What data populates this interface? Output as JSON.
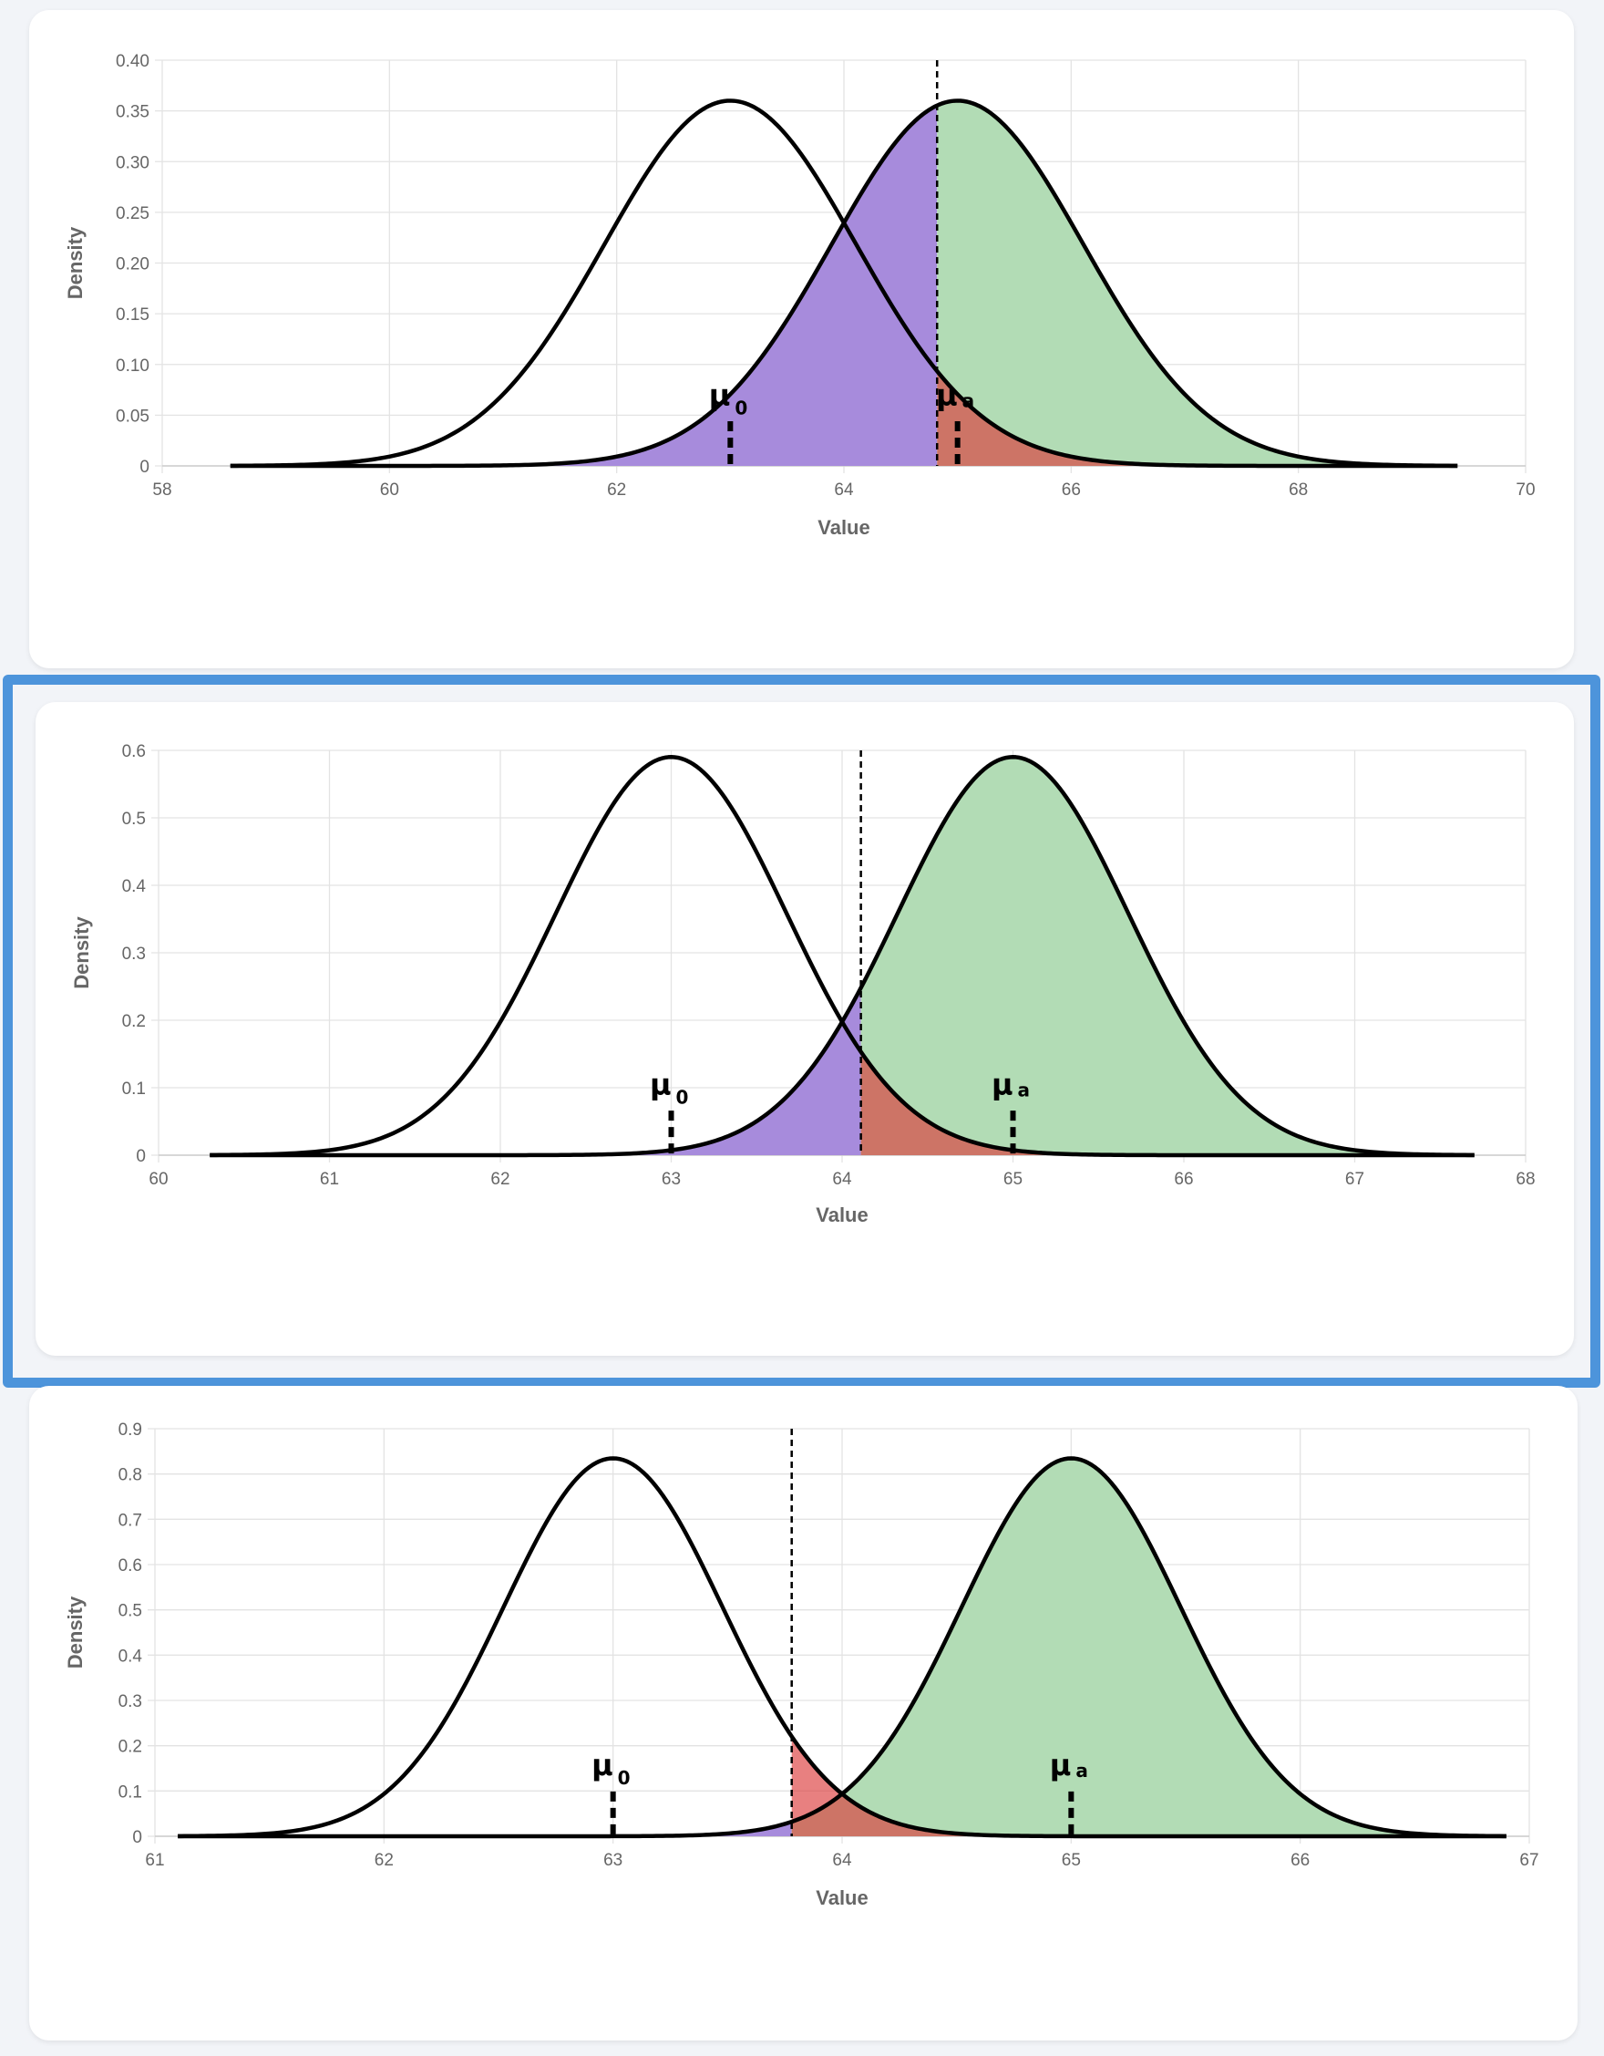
{
  "colors": {
    "beta": "#a78bdc",
    "power": "#b2dcb5",
    "alpha": "rgba(220,60,60,0.65)",
    "selection": "#4d94db",
    "curve": "#000000"
  },
  "chart_data": [
    {
      "type": "area",
      "xlabel": "Value",
      "ylabel": "Density",
      "xlim": [
        58,
        70
      ],
      "ylim": [
        0,
        0.4
      ],
      "x_ticks": [
        "58",
        "60",
        "62",
        "64",
        "66",
        "68",
        "70"
      ],
      "y_ticks": [
        "0",
        "0.05",
        "0.10",
        "0.15",
        "0.20",
        "0.25",
        "0.30",
        "0.35",
        "0.40"
      ],
      "grid": true,
      "null_mean": 63,
      "alt_mean": 65,
      "sd": 1.108,
      "critical_value": 64.82,
      "curve_range": [
        58.6,
        69.4
      ],
      "labels": {
        "mu0": "μ",
        "mu0_sub": "0",
        "mua": "μ",
        "mua_sub": "a"
      },
      "selected": false
    },
    {
      "type": "area",
      "xlabel": "Value",
      "ylabel": "Density",
      "xlim": [
        60,
        68
      ],
      "ylim": [
        0,
        0.6
      ],
      "x_ticks": [
        "60",
        "61",
        "62",
        "63",
        "64",
        "65",
        "66",
        "67",
        "68"
      ],
      "y_ticks": [
        "0",
        "0.1",
        "0.2",
        "0.3",
        "0.4",
        "0.5",
        "0.6"
      ],
      "grid": true,
      "null_mean": 63,
      "alt_mean": 65,
      "sd": 0.676,
      "critical_value": 64.11,
      "curve_range": [
        60.3,
        67.7
      ],
      "labels": {
        "mu0": "μ",
        "mu0_sub": "0",
        "mua": "μ",
        "mua_sub": "a"
      },
      "selected": true
    },
    {
      "type": "area",
      "xlabel": "Value",
      "ylabel": "Density",
      "xlim": [
        61,
        67
      ],
      "ylim": [
        0,
        0.9
      ],
      "x_ticks": [
        "61",
        "62",
        "63",
        "64",
        "65",
        "66",
        "67"
      ],
      "y_ticks": [
        "0",
        "0.1",
        "0.2",
        "0.3",
        "0.4",
        "0.5",
        "0.6",
        "0.7",
        "0.8",
        "0.9"
      ],
      "grid": true,
      "null_mean": 63,
      "alt_mean": 65,
      "sd": 0.478,
      "critical_value": 63.78,
      "curve_range": [
        61.1,
        66.9
      ],
      "labels": {
        "mu0": "μ",
        "mu0_sub": "0",
        "mua": "μ",
        "mua_sub": "a"
      },
      "selected": false
    }
  ]
}
